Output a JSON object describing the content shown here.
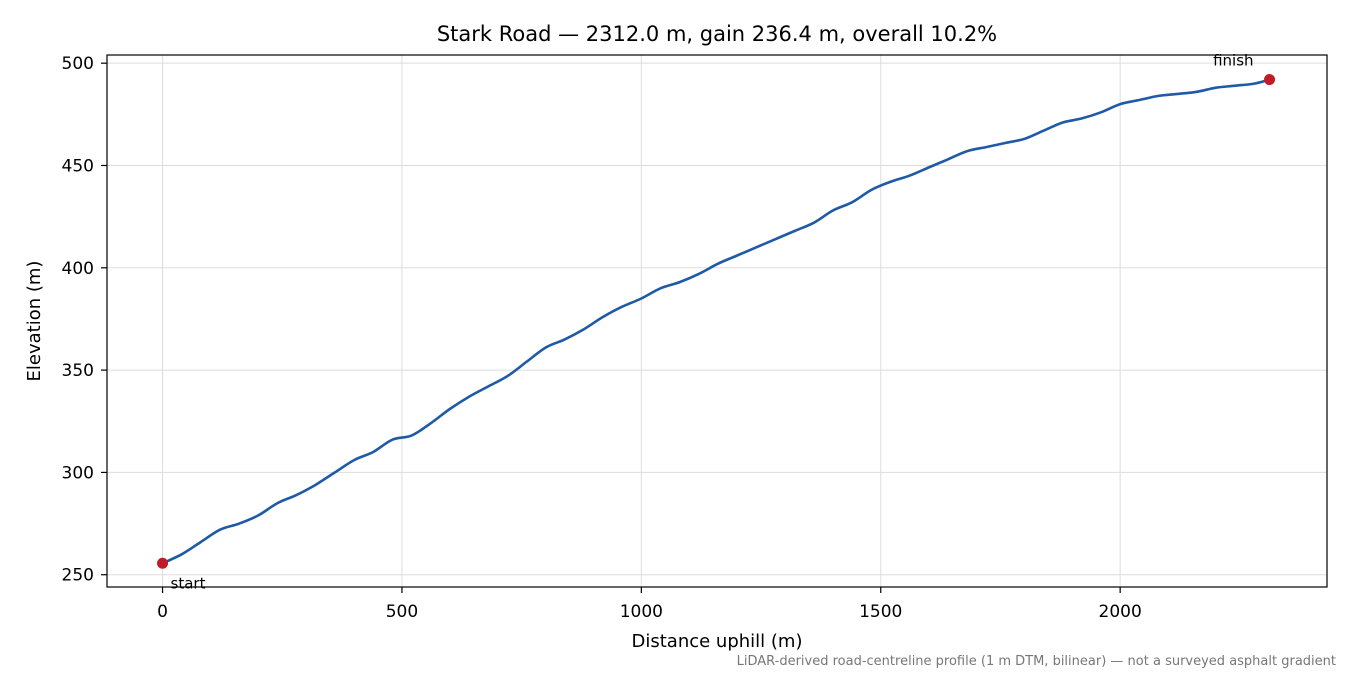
{
  "chart_data": {
    "type": "line",
    "title": "Stark Road — 2312.0 m, gain 236.4 m, overall 10.2%",
    "xlabel": "Distance uphill (m)",
    "ylabel": "Elevation (m)",
    "xlim": [
      -116,
      2432
    ],
    "ylim": [
      244,
      504
    ],
    "xticks": [
      0,
      500,
      1000,
      1500,
      2000
    ],
    "yticks": [
      250,
      300,
      350,
      400,
      450,
      500
    ],
    "grid": true,
    "line_color": "#1f5aa6",
    "marker_color": "#c01c28",
    "series": [
      {
        "x": [
          0,
          40,
          80,
          120,
          160,
          200,
          240,
          280,
          320,
          360,
          400,
          440,
          480,
          520,
          560,
          600,
          640,
          680,
          720,
          760,
          800,
          840,
          880,
          920,
          960,
          1000,
          1040,
          1080,
          1120,
          1160,
          1200,
          1240,
          1280,
          1320,
          1360,
          1400,
          1440,
          1480,
          1520,
          1560,
          1600,
          1640,
          1680,
          1720,
          1760,
          1800,
          1840,
          1880,
          1920,
          1960,
          2000,
          2040,
          2080,
          2120,
          2160,
          2200,
          2240,
          2280,
          2312
        ],
        "y": [
          255.6,
          260,
          266,
          272,
          275,
          279,
          285,
          289,
          294,
          300,
          306,
          310,
          316,
          318,
          324,
          331,
          337,
          342,
          347,
          354,
          361,
          365,
          370,
          376,
          381,
          385,
          390,
          393,
          397,
          402,
          406,
          410,
          414,
          418,
          422,
          428,
          432,
          438,
          442,
          445,
          449,
          453,
          457,
          459,
          461,
          463,
          467,
          471,
          473,
          476,
          480,
          482,
          484,
          485,
          486,
          488,
          489,
          490,
          492.0
        ]
      }
    ],
    "annotations": [
      {
        "text": "start",
        "x": 0,
        "y": 255.6
      },
      {
        "text": "finish",
        "x": 2312,
        "y": 492.0
      }
    ],
    "footnote": "LiDAR-derived road-centreline profile (1 m DTM, bilinear) — not a surveyed asphalt gradient"
  }
}
